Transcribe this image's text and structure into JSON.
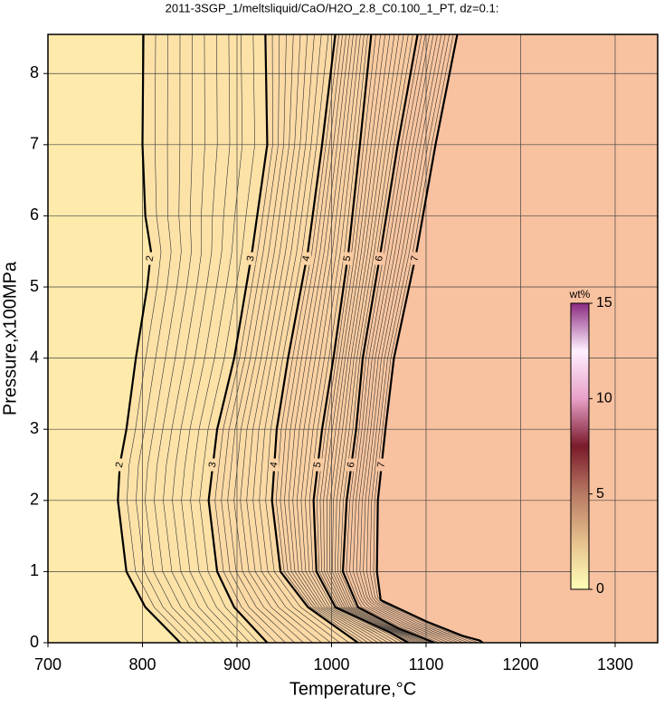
{
  "chart_data": {
    "type": "contour",
    "title": "2011-3SGP_1/meltsliquid/CaO/H2O_2.8_C0.100_1_PT, dz=0.1:",
    "x_label": "Temperature,°C",
    "y_label": "Pressure,x100MPa",
    "xlim": [
      700,
      1345
    ],
    "ylim": [
      0,
      8.55
    ],
    "xticks": [
      700,
      800,
      900,
      1000,
      1100,
      1200,
      1300
    ],
    "yticks": [
      0,
      1,
      2,
      3,
      4,
      5,
      6,
      7,
      8
    ],
    "grid": true,
    "contours": [
      {
        "level": 2,
        "y": [
          0,
          0.5,
          1,
          2,
          2.5,
          3,
          4,
          5,
          5.5,
          6,
          7,
          8.55
        ],
        "x": [
          840,
          803,
          783,
          774,
          776,
          783,
          793,
          805,
          809,
          803,
          800,
          801
        ]
      },
      {
        "level": 3,
        "y": [
          0,
          0.5,
          1,
          2,
          3,
          4,
          5.5,
          7,
          8.55
        ],
        "x": [
          932,
          897,
          879,
          870,
          879,
          897,
          916,
          932,
          930
        ]
      },
      {
        "level": 4,
        "y": [
          0,
          0.5,
          1,
          2,
          3,
          4,
          5.5,
          7,
          8.55
        ],
        "x": [
          1028,
          975,
          946,
          937,
          942,
          954,
          975,
          990,
          1004
        ]
      },
      {
        "level": 5,
        "y": [
          0,
          0.15,
          0.5,
          1,
          2,
          3,
          4,
          5.5,
          7,
          8.55
        ],
        "x": [
          1081,
          1061,
          1004,
          984,
          981,
          990,
          1002,
          1018,
          1030,
          1042
        ]
      },
      {
        "level": 6,
        "y": [
          0,
          0.2,
          0.5,
          1,
          2,
          3,
          4,
          5.5,
          7,
          8.55
        ],
        "x": [
          1109,
          1071,
          1028,
          1012,
          1016,
          1026,
          1033,
          1052,
          1070,
          1091
        ]
      },
      {
        "level": 7,
        "y": [
          0,
          0.03,
          0.1,
          0.3,
          0.6,
          1,
          2,
          3,
          4,
          5.5,
          7,
          8.55
        ],
        "x": [
          1160,
          1157,
          1138,
          1100,
          1052,
          1048,
          1049,
          1057,
          1066,
          1090,
          1110,
          1133
        ]
      }
    ],
    "region_colors": [
      "#feeaab",
      "#fde2a8",
      "#fcdaa5",
      "#fbd2a3",
      "#facca1",
      "#f9c6a0",
      "#f8c19f"
    ],
    "saturated_color": "#ffa8a8",
    "colorbar": {
      "label": "wt%",
      "lim": [
        0,
        15
      ],
      "ticks": [
        0,
        5,
        10,
        15
      ],
      "colormap": [
        "#ffffb8",
        "#e6c08c",
        "#b87a64",
        "#7a1a2a",
        "#e8a0c8",
        "#fff0ff",
        "#8a2a80"
      ]
    }
  }
}
